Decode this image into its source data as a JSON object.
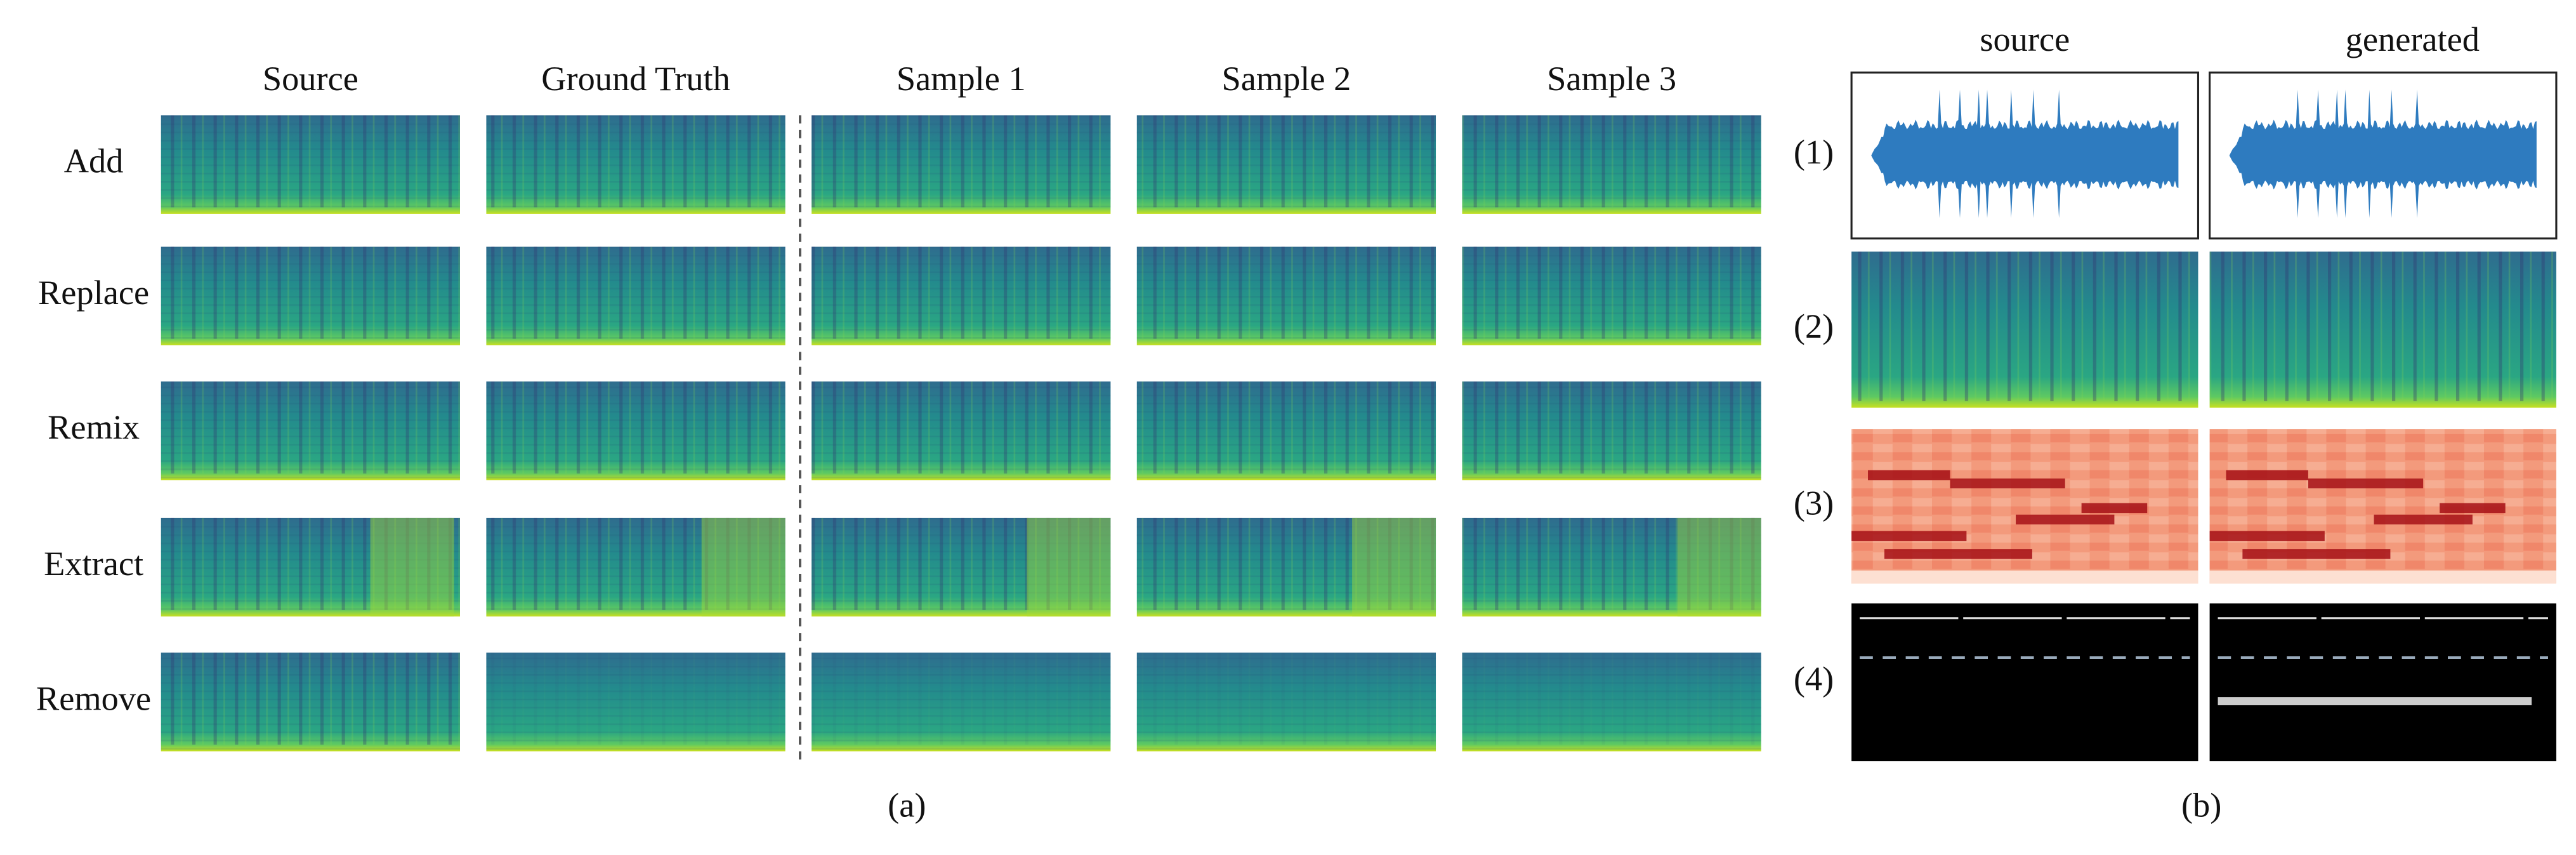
{
  "panel_a": {
    "column_headers": [
      "Source",
      "Ground Truth",
      "Sample 1",
      "Sample 2",
      "Sample 3"
    ],
    "row_labels": [
      "Add",
      "Replace",
      "Remix",
      "Extract",
      "Remove"
    ],
    "caption": "(a)"
  },
  "panel_b": {
    "column_headers": [
      "source",
      "generated"
    ],
    "row_labels": [
      "(1)",
      "(2)",
      "(3)",
      "(4)"
    ],
    "caption": "(b)"
  }
}
